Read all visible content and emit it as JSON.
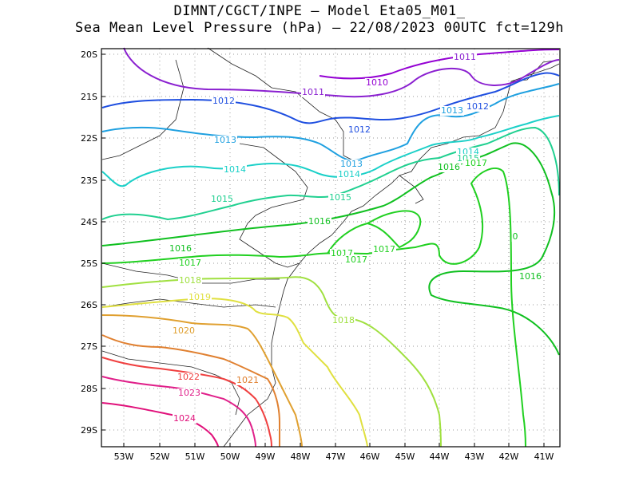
{
  "title_line1": "DIMNT/CGCT/INPE —  Model Eta05_M01_",
  "title_line2": "Sea Mean Level Pressure (hPa) — 22/08/2023 00UTC fct=129h",
  "lat_ticks": [
    "20S",
    "21S",
    "22S",
    "23S",
    "24S",
    "25S",
    "26S",
    "27S",
    "28S",
    "29S"
  ],
  "lon_ticks": [
    "53W",
    "52W",
    "51W",
    "50W",
    "49W",
    "48W",
    "47W",
    "46W",
    "45W",
    "44W",
    "43W",
    "42W",
    "41W"
  ],
  "colors": {
    "c1010": "#9400d3",
    "c1011": "#8a1fd0",
    "c1012": "#1f4fe0",
    "c1013": "#1fa0e0",
    "c1014": "#1bd0c8",
    "c1015": "#20d090",
    "c1016": "#10c020",
    "c1017": "#20d020",
    "c1018": "#a0e040",
    "c1019": "#e0e040",
    "c1020": "#e0a030",
    "c1021": "#e08030",
    "c1022": "#f04040",
    "c1023": "#e0208a",
    "c1024": "#e0107a"
  },
  "contour_labels": [
    {
      "text": "1011",
      "color": "c1011"
    },
    {
      "text": "1010",
      "color": "c1010"
    },
    {
      "text": "1011",
      "color": "c1011"
    },
    {
      "text": "1012",
      "color": "c1012"
    },
    {
      "text": "1012",
      "color": "c1012"
    },
    {
      "text": "1012",
      "color": "c1012"
    },
    {
      "text": "1013",
      "color": "c1013"
    },
    {
      "text": "1013",
      "color": "c1013"
    },
    {
      "text": "1013",
      "color": "c1013"
    },
    {
      "text": "1014",
      "color": "c1014"
    },
    {
      "text": "1014",
      "color": "c1014"
    },
    {
      "text": "1014",
      "color": "c1014"
    },
    {
      "text": "1015",
      "color": "c1015"
    },
    {
      "text": "1015",
      "color": "c1015"
    },
    {
      "text": "1015",
      "color": "c1015"
    },
    {
      "text": "1016",
      "color": "c1016"
    },
    {
      "text": "1016",
      "color": "c1016"
    },
    {
      "text": "1016",
      "color": "c1016"
    },
    {
      "text": "1016",
      "color": "c1016"
    },
    {
      "text": "1017",
      "color": "c1017"
    },
    {
      "text": "1017",
      "color": "c1017"
    },
    {
      "text": "1017",
      "color": "c1017"
    },
    {
      "text": "1017",
      "color": "c1017"
    },
    {
      "text": "1017",
      "color": "c1017"
    },
    {
      "text": "1018",
      "color": "c1018"
    },
    {
      "text": "1018",
      "color": "c1018"
    },
    {
      "text": "1019",
      "color": "c1019"
    },
    {
      "text": "1020",
      "color": "c1020"
    },
    {
      "text": "1021",
      "color": "c1021"
    },
    {
      "text": "1022",
      "color": "c1022"
    },
    {
      "text": "1023",
      "color": "c1023"
    },
    {
      "text": "1024",
      "color": "c1024"
    },
    {
      "text": "0",
      "color": "c1016"
    }
  ]
}
